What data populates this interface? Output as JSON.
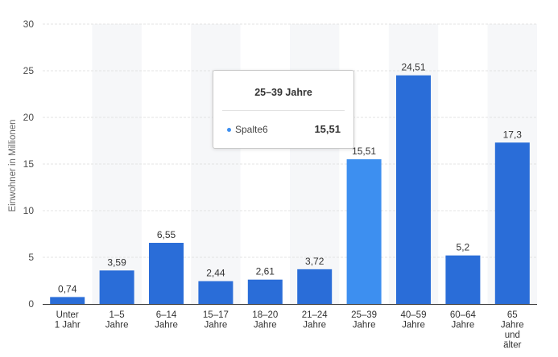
{
  "colors": {
    "bar": "#2a6dd8",
    "bar_highlight": "#3d8ff0",
    "band": "#f6f7f9",
    "grid": "#e3e3e3",
    "axis": "#333333"
  },
  "chart_data": {
    "type": "bar",
    "categories": [
      [
        "Unter",
        "1 Jahr"
      ],
      [
        "1–5",
        "Jahre"
      ],
      [
        "6–14",
        "Jahre"
      ],
      [
        "15–17",
        "Jahre"
      ],
      [
        "18–20",
        "Jahre"
      ],
      [
        "21–24",
        "Jahre"
      ],
      [
        "25–39",
        "Jahre"
      ],
      [
        "40–59",
        "Jahre"
      ],
      [
        "60–64",
        "Jahre"
      ],
      [
        "65",
        "Jahre",
        "und",
        "älter"
      ]
    ],
    "values": [
      0.74,
      3.59,
      6.55,
      2.44,
      2.61,
      3.72,
      15.51,
      24.51,
      5.2,
      17.3
    ],
    "value_labels": [
      "0,74",
      "3,59",
      "6,55",
      "2,44",
      "2,61",
      "3,72",
      "15,51",
      "24,51",
      "5,2",
      "17,3"
    ],
    "ylabel": "Einwohner in Millionen",
    "ylim": [
      0,
      30
    ],
    "yticks": [
      0,
      5,
      10,
      15,
      20,
      25,
      30
    ],
    "grid": true,
    "highlighted_index": 6
  },
  "tooltip": {
    "title": "25–39 Jahre",
    "series_name": "Spalte6",
    "value": "15,51"
  }
}
